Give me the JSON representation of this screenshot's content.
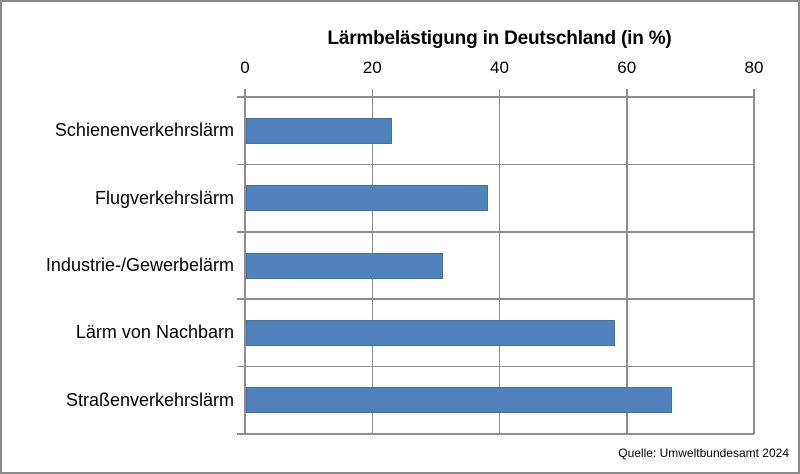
{
  "chart_data": {
    "type": "bar",
    "orientation": "horizontal",
    "title": "Lärmbelästigung in Deutschland (in %)",
    "categories": [
      "Schienenverkehrslärm",
      "Flugverkehrslärm",
      "Industrie-/Gewerbelärm",
      "Lärm von Nachbarn",
      "Straßenverkehrslärm"
    ],
    "values": [
      23,
      38,
      31,
      58,
      67
    ],
    "xlabel": "",
    "ylabel": "",
    "xlim": [
      0,
      80
    ],
    "x_ticks": [
      0,
      20,
      40,
      60,
      80
    ],
    "grid": true,
    "legend": "none",
    "bar_color": "#4f81bd",
    "bar_border_color": "#44719f",
    "gridline_color": "#8e8e8e",
    "source": "Quelle: Umweltbundesamt 2024"
  }
}
